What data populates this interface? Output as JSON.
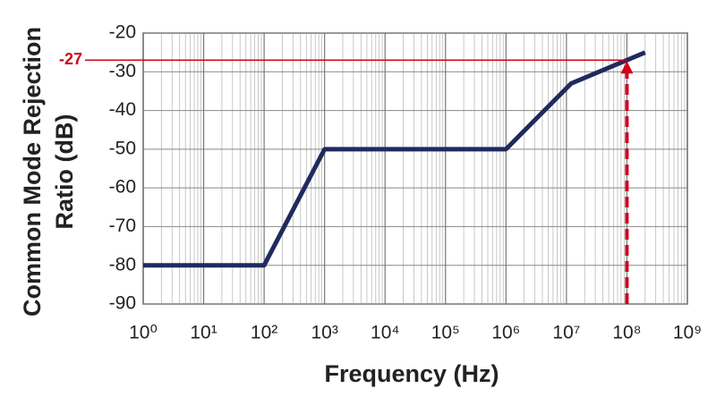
{
  "chart_data": {
    "type": "line",
    "xlabel": "Frequency (Hz)",
    "ylabel": [
      "Common Mode Rejection",
      "Ratio (dB)"
    ],
    "x": [
      1,
      100,
      1000,
      1000000,
      12000000,
      200000000
    ],
    "series": [
      {
        "color": "#1f2a5e",
        "values": [
          -80,
          -80,
          -50,
          -50,
          -33,
          -25
        ]
      }
    ],
    "xscale": "log",
    "xlim": [
      1,
      1000000000
    ],
    "xticks": [
      {
        "value": 1,
        "label": "10⁰"
      },
      {
        "value": 10,
        "label": "10¹"
      },
      {
        "value": 100,
        "label": "10²"
      },
      {
        "value": 1000,
        "label": "10³"
      },
      {
        "value": 10000,
        "label": "10⁴"
      },
      {
        "value": 100000,
        "label": "10⁵"
      },
      {
        "value": 1000000,
        "label": "10⁶"
      },
      {
        "value": 10000000,
        "label": "10⁷"
      },
      {
        "value": 100000000,
        "label": "10⁸"
      },
      {
        "value": 1000000000,
        "label": "10⁹"
      }
    ],
    "ylim": [
      -90,
      -20
    ],
    "yticks": [
      -90,
      -80,
      -70,
      -60,
      -50,
      -40,
      -30,
      -20
    ],
    "grid": true,
    "annotation": {
      "value": -27,
      "x": 100000000,
      "color": "#d0021b"
    }
  }
}
